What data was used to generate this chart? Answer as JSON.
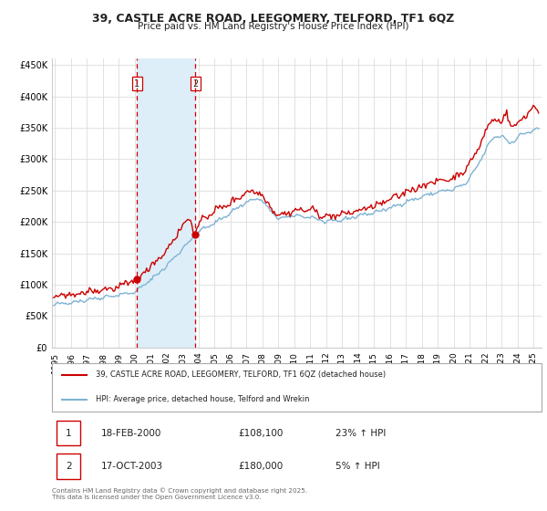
{
  "title": "39, CASTLE ACRE ROAD, LEEGOMERY, TELFORD, TF1 6QZ",
  "subtitle": "Price paid vs. HM Land Registry's House Price Index (HPI)",
  "legend_line1": "39, CASTLE ACRE ROAD, LEEGOMERY, TELFORD, TF1 6QZ (detached house)",
  "legend_line2": "HPI: Average price, detached house, Telford and Wrekin",
  "footer": "Contains HM Land Registry data © Crown copyright and database right 2025.\nThis data is licensed under the Open Government Licence v3.0.",
  "sale1_date": "18-FEB-2000",
  "sale1_price": "£108,100",
  "sale1_hpi": "23% ↑ HPI",
  "sale2_date": "17-OCT-2003",
  "sale2_price": "£180,000",
  "sale2_hpi": "5% ↑ HPI",
  "sale1_x": 2000.12,
  "sale1_y": 108100,
  "sale2_x": 2003.79,
  "sale2_y": 180000,
  "vline1_x": 2000.12,
  "vline2_x": 2003.79,
  "shade_start": 2000.12,
  "shade_end": 2003.79,
  "price_line_color": "#cc0000",
  "hpi_line_color": "#7fb3d3",
  "shade_color": "#ddeef8",
  "vline_color": "#cc0000",
  "grid_color": "#dddddd",
  "background_color": "#ffffff",
  "ylim": [
    0,
    460000
  ],
  "xlim_start": 1994.8,
  "xlim_end": 2025.5,
  "hpi_anchors_x": [
    1995.0,
    1996.0,
    1997.0,
    1998.0,
    1999.0,
    2000.0,
    2001.0,
    2002.0,
    2003.0,
    2004.0,
    2005.0,
    2006.0,
    2007.0,
    2007.8,
    2008.5,
    2009.0,
    2010.0,
    2011.0,
    2012.0,
    2013.0,
    2014.0,
    2015.0,
    2016.0,
    2017.0,
    2018.0,
    2019.0,
    2020.0,
    2020.8,
    2021.5,
    2022.0,
    2022.5,
    2023.0,
    2023.5,
    2024.0,
    2024.5,
    2025.3
  ],
  "hpi_anchors_y": [
    68000,
    72000,
    76000,
    80000,
    84000,
    88000,
    108000,
    130000,
    158000,
    185000,
    198000,
    215000,
    232000,
    238000,
    218000,
    205000,
    210000,
    208000,
    200000,
    203000,
    210000,
    215000,
    222000,
    232000,
    240000,
    248000,
    252000,
    262000,
    290000,
    315000,
    335000,
    338000,
    325000,
    335000,
    342000,
    348000
  ],
  "price_anchors_x": [
    1995.0,
    1996.0,
    1997.0,
    1998.0,
    1999.0,
    2000.12,
    2001.0,
    2002.0,
    2002.5,
    2003.0,
    2003.5,
    2003.79,
    2004.0,
    2004.5,
    2005.0,
    2006.0,
    2007.0,
    2007.8,
    2008.5,
    2009.0,
    2010.0,
    2011.0,
    2012.0,
    2013.0,
    2014.0,
    2015.0,
    2016.0,
    2017.0,
    2018.0,
    2019.0,
    2020.0,
    2020.8,
    2021.5,
    2022.0,
    2022.5,
    2023.0,
    2023.3,
    2023.5,
    2024.0,
    2024.5,
    2025.0,
    2025.3
  ],
  "price_anchors_y": [
    80000,
    84000,
    88000,
    92000,
    96000,
    108100,
    130000,
    155000,
    175000,
    195000,
    205000,
    180000,
    195000,
    210000,
    218000,
    230000,
    248000,
    248000,
    225000,
    210000,
    218000,
    220000,
    208000,
    212000,
    218000,
    225000,
    235000,
    248000,
    258000,
    265000,
    270000,
    285000,
    315000,
    345000,
    365000,
    360000,
    375000,
    355000,
    355000,
    370000,
    385000,
    375000
  ]
}
